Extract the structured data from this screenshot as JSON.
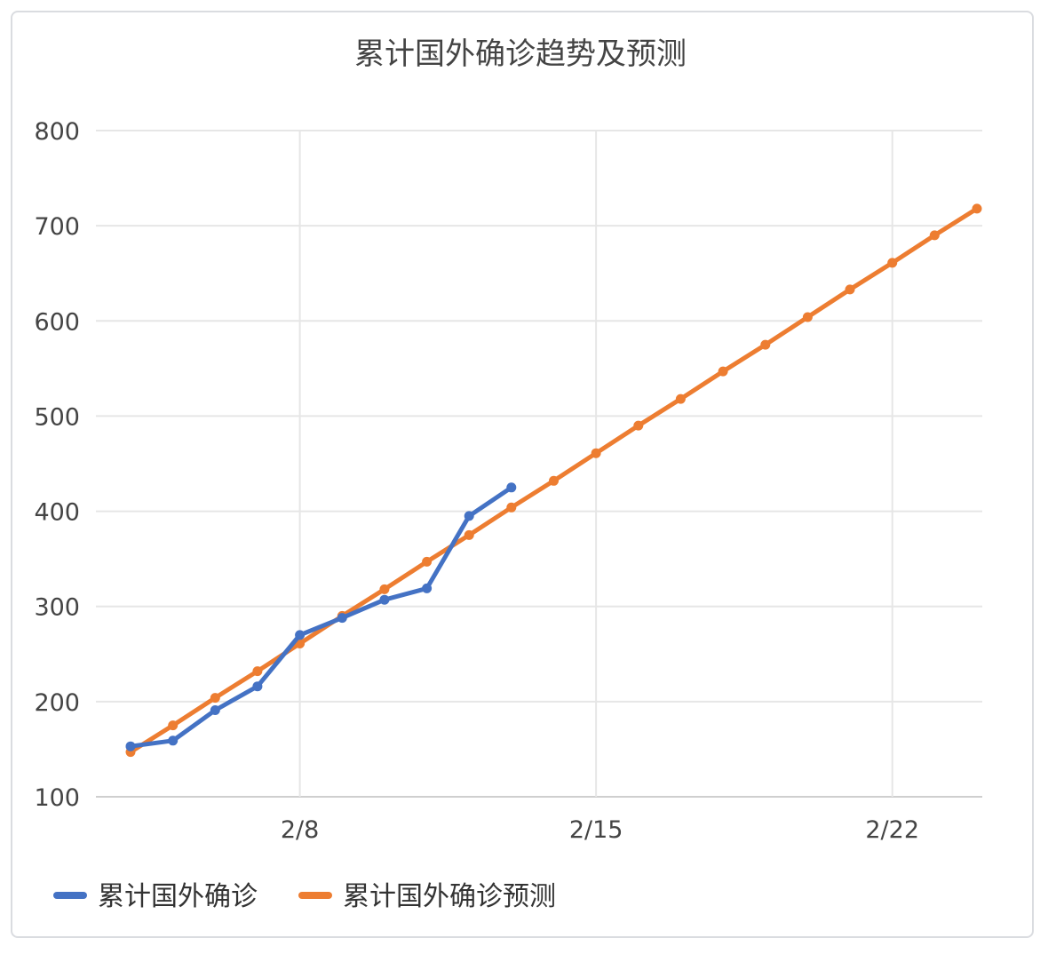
{
  "chart_data": {
    "type": "line",
    "title": "累计国外确诊趋势及预测",
    "xlabel": "",
    "ylabel": "",
    "ylim": [
      100,
      800
    ],
    "yticks": [
      100,
      200,
      300,
      400,
      500,
      600,
      700,
      800
    ],
    "x": [
      "2/4",
      "2/5",
      "2/6",
      "2/7",
      "2/8",
      "2/9",
      "2/10",
      "2/11",
      "2/12",
      "2/13",
      "2/14",
      "2/15",
      "2/16",
      "2/17",
      "2/18",
      "2/19",
      "2/20",
      "2/21",
      "2/22",
      "2/23",
      "2/24"
    ],
    "xticks": [
      "2/8",
      "2/15",
      "2/22"
    ],
    "grid": true,
    "legend": "bottom-left",
    "series": [
      {
        "name": "累计国外确诊",
        "color": "#4472c4",
        "values": [
          153,
          159,
          191,
          216,
          270,
          288,
          307,
          319,
          395,
          425,
          null,
          null,
          null,
          null,
          null,
          null,
          null,
          null,
          null,
          null,
          null
        ]
      },
      {
        "name": "累计国外确诊预测",
        "color": "#ed7d31",
        "values": [
          147,
          175,
          204,
          232,
          261,
          290,
          318,
          347,
          375,
          404,
          432,
          461,
          490,
          518,
          547,
          575,
          604,
          633,
          661,
          690,
          718
        ]
      }
    ]
  }
}
